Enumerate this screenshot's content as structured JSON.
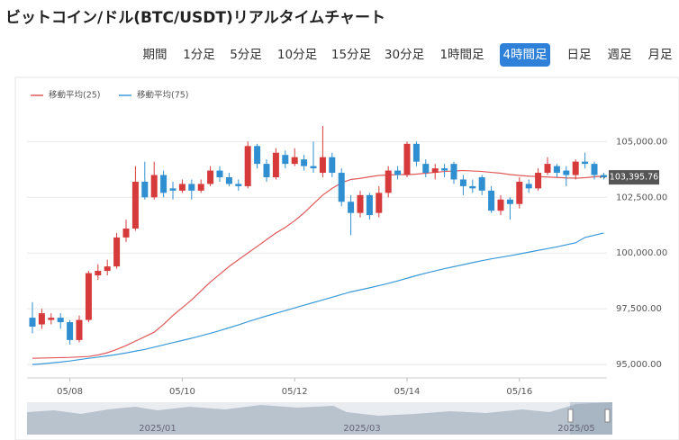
{
  "header": {
    "title": "ビットコイン/ドル(BTC/USDT)リアルタイムチャート",
    "period_label": "期間",
    "tabs": [
      "1分足",
      "5分足",
      "10分足",
      "15分足",
      "30分足",
      "1時間足",
      "4時間足",
      "日足",
      "週足",
      "月足"
    ],
    "active_tab": "4時間足"
  },
  "chart_data": {
    "type": "candlestick",
    "categories": [
      null,
      null,
      null,
      null,
      "05/08",
      null,
      null,
      null,
      null,
      null,
      null,
      null,
      null,
      null,
      null,
      null,
      "05/10",
      null,
      null,
      null,
      null,
      null,
      null,
      null,
      null,
      null,
      null,
      null,
      "05/12",
      null,
      null,
      null,
      null,
      null,
      null,
      null,
      null,
      null,
      null,
      null,
      "05/14",
      null,
      null,
      null,
      null,
      null,
      null,
      null,
      null,
      null,
      null,
      null,
      "05/16",
      null,
      null,
      null,
      null,
      null,
      null,
      null,
      null,
      null
    ],
    "open": [
      97100,
      96800,
      97000,
      97100,
      96900,
      96100,
      97000,
      99000,
      99200,
      99400,
      100700,
      101100,
      103200,
      102500,
      103500,
      102900,
      102800,
      103100,
      102800,
      103100,
      103700,
      103400,
      103100,
      103000,
      104800,
      104000,
      103400,
      104400,
      104000,
      104200,
      103900,
      103600,
      104300,
      103600,
      102300,
      101800,
      102600,
      101800,
      102700,
      103700,
      103500,
      104900,
      104000,
      103600,
      103800,
      104000,
      103300,
      103000,
      103400,
      102800,
      101900,
      102400,
      102200,
      103100,
      102900,
      103600,
      103900,
      103700,
      103500,
      104100,
      104000,
      103500
    ],
    "high": [
      97800,
      97500,
      97300,
      97300,
      97000,
      97200,
      99200,
      99500,
      99700,
      100900,
      101500,
      103900,
      104100,
      104100,
      103700,
      103200,
      103300,
      103300,
      103300,
      103900,
      103900,
      103600,
      103300,
      105000,
      104900,
      104200,
      104700,
      104600,
      104700,
      104400,
      105000,
      105700,
      104500,
      103800,
      102600,
      102800,
      102700,
      103000,
      103900,
      103900,
      105000,
      105000,
      104200,
      104000,
      104000,
      104100,
      103500,
      103300,
      103500,
      103000,
      102600,
      102500,
      103400,
      103300,
      103800,
      104300,
      104000,
      103900,
      104200,
      104500,
      104100,
      103600
    ],
    "low": [
      96400,
      96600,
      96800,
      96600,
      95900,
      96000,
      96900,
      98800,
      99000,
      99300,
      100500,
      101000,
      102400,
      102400,
      102500,
      102400,
      102700,
      102400,
      102700,
      103000,
      103200,
      103000,
      102800,
      102900,
      103800,
      103200,
      103300,
      103800,
      103900,
      103700,
      103600,
      103400,
      103400,
      102100,
      100800,
      101600,
      101500,
      101600,
      102500,
      103300,
      103400,
      103900,
      103400,
      103300,
      103400,
      103100,
      102600,
      102700,
      102600,
      101800,
      101700,
      101500,
      102000,
      102700,
      102800,
      103500,
      103400,
      103000,
      103300,
      103800,
      103300,
      103300
    ],
    "close": [
      96700,
      97300,
      97100,
      96900,
      96100,
      97000,
      99100,
      99200,
      99400,
      100700,
      101100,
      103200,
      102500,
      103500,
      102700,
      102800,
      103100,
      102800,
      103100,
      103700,
      103400,
      103100,
      103000,
      104800,
      104000,
      103400,
      104500,
      104000,
      104300,
      103900,
      103800,
      104300,
      103600,
      102300,
      101800,
      102600,
      101700,
      102700,
      103700,
      103500,
      104900,
      104100,
      103600,
      103800,
      103700,
      103300,
      103000,
      102900,
      102800,
      101900,
      102400,
      102200,
      103200,
      102900,
      103600,
      104000,
      103600,
      103500,
      104100,
      104000,
      103500,
      103400
    ],
    "up_color": "#d73a3a",
    "down_color": "#2f8fd0",
    "series": [
      {
        "name": "移動平均(25)",
        "color": "#e05a5a",
        "values": [
          95280,
          95290,
          95300,
          95310,
          95320,
          95340,
          95360,
          95430,
          95530,
          95680,
          95850,
          96050,
          96250,
          96450,
          96800,
          97200,
          97550,
          97900,
          98300,
          98700,
          99050,
          99400,
          99700,
          100000,
          100300,
          100600,
          100900,
          101150,
          101450,
          101800,
          102200,
          102600,
          102900,
          103150,
          103300,
          103350,
          103420,
          103480,
          103500,
          103520,
          103520,
          103540,
          103580,
          103620,
          103660,
          103680,
          103700,
          103680,
          103660,
          103620,
          103580,
          103520,
          103480,
          103450,
          103430,
          103410,
          103390,
          103370,
          103360,
          103380,
          103420,
          103460
        ]
      },
      {
        "name": "移動平均(75)",
        "color": "#3a9ad9",
        "values": [
          95000,
          95030,
          95070,
          95110,
          95160,
          95220,
          95280,
          95330,
          95390,
          95450,
          95520,
          95600,
          95680,
          95780,
          95880,
          95980,
          96080,
          96180,
          96290,
          96400,
          96520,
          96650,
          96780,
          96920,
          97050,
          97180,
          97300,
          97420,
          97540,
          97660,
          97780,
          97900,
          98020,
          98140,
          98260,
          98350,
          98440,
          98540,
          98640,
          98750,
          98870,
          98990,
          99100,
          99200,
          99300,
          99390,
          99480,
          99570,
          99660,
          99740,
          99810,
          99880,
          99960,
          100040,
          100120,
          100200,
          100280,
          100370,
          100460,
          100700,
          100800,
          100900
        ]
      }
    ],
    "ylim": [
      94400,
      105700
    ],
    "yticks": [
      {
        "value": 95000,
        "label": "95,000.00"
      },
      {
        "value": 97500,
        "label": "97,500.00"
      },
      {
        "value": 100000,
        "label": "100,000.00"
      },
      {
        "value": 102500,
        "label": "102,500.00"
      },
      {
        "value": 105000,
        "label": "105,000.00"
      }
    ],
    "grid": true,
    "last_price": {
      "value": 103395.76,
      "label": "103,395.76"
    }
  },
  "navigator": {
    "labels": [
      "2025/01",
      "2025/03",
      "2025/05"
    ]
  }
}
